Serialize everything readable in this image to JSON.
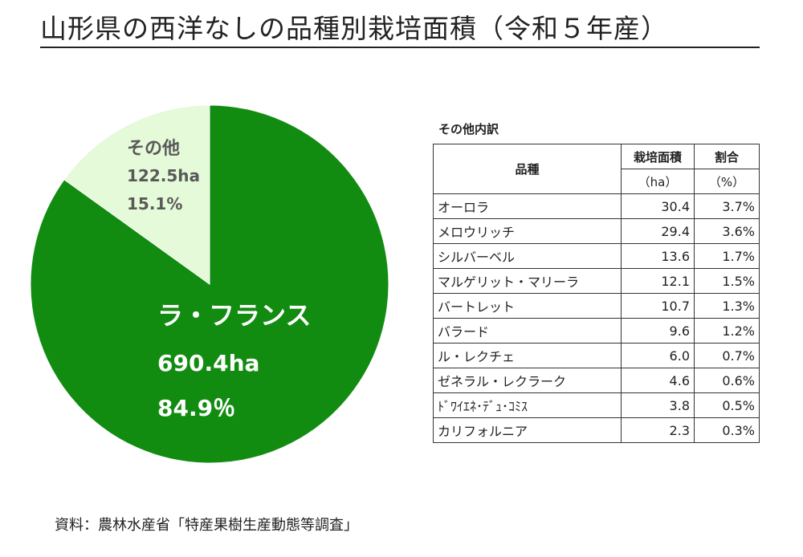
{
  "title": "山形県の西洋なしの品種別栽培面積（令和５年産）",
  "chart_data": [
    {
      "type": "pie",
      "slices": [
        {
          "label": "ラ・フランス",
          "value": 690.4,
          "value_text": "690.4ha",
          "percent": 84.9,
          "percent_text": "84.9％",
          "color": "#118c11"
        },
        {
          "label": "その他",
          "value": 122.5,
          "value_text": "122.5ha",
          "percent": 15.1,
          "percent_text": "15.1%",
          "color": "#e4fad8"
        }
      ]
    },
    {
      "type": "table",
      "title": "その他内訳",
      "columns": {
        "variety": "品種",
        "area": "栽培面積",
        "area_unit": "（ha）",
        "share": "割合",
        "share_unit": "（%）"
      },
      "rows": [
        {
          "variety": "オーロラ",
          "area": "30.4",
          "share": "3.7%"
        },
        {
          "variety": "メロウリッチ",
          "area": "29.4",
          "share": "3.6%"
        },
        {
          "variety": "シルバーベル",
          "area": "13.6",
          "share": "1.7%"
        },
        {
          "variety": "マルゲリット・マリーラ",
          "area": "12.1",
          "share": "1.5%"
        },
        {
          "variety": "バートレット",
          "area": "10.7",
          "share": "1.3%"
        },
        {
          "variety": "バラード",
          "area": "9.6",
          "share": "1.2%"
        },
        {
          "variety": "ル・レクチェ",
          "area": "6.0",
          "share": "0.7%"
        },
        {
          "variety": "ゼネラル・レクラーク",
          "area": "4.6",
          "share": "0.6%"
        },
        {
          "variety": "ﾄﾞﾜｲｴﾈ･ﾃﾞｭ･ｺﾐｽ",
          "area": "3.8",
          "share": "0.5%"
        },
        {
          "variety": "カリフォルニア",
          "area": "2.3",
          "share": "0.3%"
        }
      ]
    }
  ],
  "source": "資料：農林水産省「特産果樹生産動態等調査」"
}
